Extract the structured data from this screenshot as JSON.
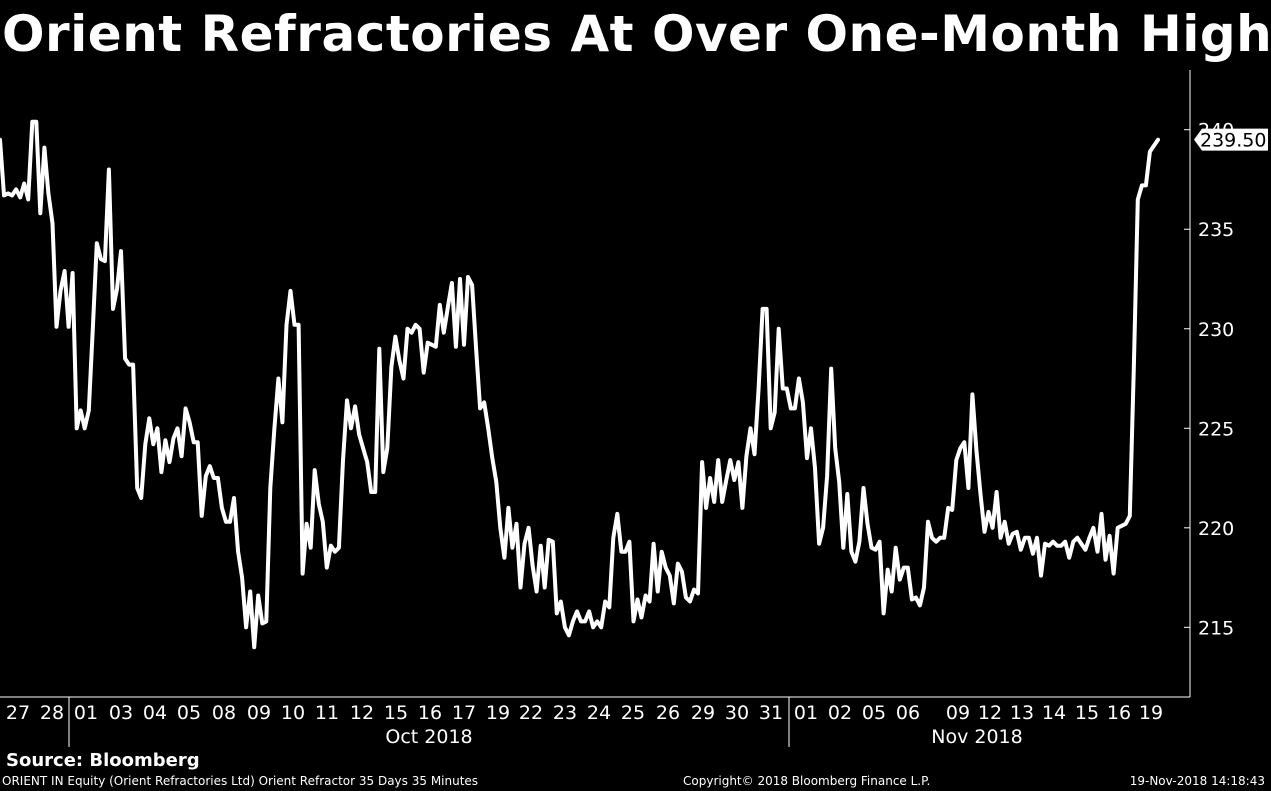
{
  "title": "Orient Refractories At Over One-Month High",
  "source": "Source: Bloomberg",
  "footer": {
    "left": "ORIENT IN Equity (Orient Refractories Ltd) Orient Refractor 35 Days 35 Minutes",
    "middle": "Copyright© 2018 Bloomberg Finance L.P.",
    "right": "19-Nov-2018 14:18:43"
  },
  "chart_data": {
    "type": "line",
    "series": [
      {
        "last_value_label": "239.50",
        "values": [
          239.5,
          236.7,
          236.8,
          236.7,
          237.0,
          236.6,
          237.3,
          236.5,
          240.4,
          240.4,
          235.8,
          239.1,
          236.8,
          235.3,
          230.1,
          231.9,
          232.9,
          230.1,
          232.8,
          225.0,
          225.9,
          225.0,
          225.9,
          230.0,
          234.3,
          233.5,
          233.4,
          238.0,
          231.0,
          232.0,
          233.9,
          228.5,
          228.2,
          228.2,
          222.0,
          221.5,
          224.2,
          225.5,
          224.2,
          225.0,
          222.8,
          224.4,
          223.3,
          224.5,
          225.0,
          223.6,
          226.0,
          225.3,
          224.3,
          224.3,
          220.6,
          222.6,
          223.1,
          222.5,
          222.5,
          221.0,
          220.3,
          220.3,
          221.5,
          218.8,
          217.5,
          215.0,
          216.8,
          214.0,
          216.6,
          215.2,
          215.3,
          222.0,
          225.0,
          227.5,
          225.3,
          230.2,
          231.9,
          230.2,
          230.2,
          217.7,
          220.2,
          219.0,
          222.9,
          221.2,
          220.3,
          218.0,
          219.1,
          218.8,
          219.0,
          223.4,
          226.4,
          225.0,
          226.1,
          224.7,
          224.0,
          223.3,
          221.8,
          221.8,
          229.0,
          222.8,
          224.0,
          228.1,
          229.6,
          228.4,
          227.5,
          230.0,
          229.8,
          230.2,
          230.0,
          227.8,
          229.3,
          229.2,
          229.1,
          231.2,
          229.8,
          231.1,
          232.3,
          229.1,
          232.5,
          229.2,
          232.6,
          232.2,
          229.0,
          226.0,
          226.3,
          225.0,
          223.5,
          222.3,
          220.0,
          218.5,
          221.0,
          219.0,
          220.2,
          217.0,
          219.2,
          220.0,
          218.1,
          216.8,
          219.1,
          217.0,
          219.4,
          219.3,
          215.7,
          216.3,
          215.0,
          214.6,
          215.3,
          215.8,
          215.3,
          215.3,
          215.8,
          215.0,
          215.3,
          215.0,
          216.3,
          216.0,
          219.5,
          220.7,
          218.8,
          218.8,
          219.3,
          215.3,
          216.4,
          215.5,
          216.6,
          216.3,
          219.2,
          216.8,
          218.8,
          218.0,
          217.6,
          216.2,
          218.2,
          217.8,
          216.5,
          216.3,
          216.9,
          216.7,
          223.3,
          221.0,
          222.5,
          221.3,
          223.4,
          221.3,
          222.4,
          223.4,
          222.4,
          223.3,
          221.0,
          223.6,
          225.0,
          223.7,
          227.0,
          231.0,
          231.0,
          225.0,
          225.8,
          230.0,
          227.0,
          227.0,
          226.0,
          226.0,
          227.5,
          226.3,
          223.5,
          225.0,
          223.0,
          219.2,
          220.0,
          222.6,
          228.0,
          224.0,
          222.3,
          219.0,
          221.7,
          218.8,
          218.3,
          219.3,
          222.0,
          220.2,
          219.0,
          218.9,
          219.3,
          215.7,
          217.9,
          216.8,
          219.0,
          217.4,
          218.0,
          218.0,
          216.4,
          216.5,
          216.1,
          217.0,
          220.3,
          219.5,
          219.3,
          219.5,
          219.5,
          221.0,
          220.9,
          223.4,
          224.0,
          224.3,
          222.0,
          226.7,
          223.9,
          221.7,
          219.8,
          220.8,
          220.0,
          221.8,
          219.5,
          220.3,
          219.2,
          219.7,
          219.8,
          218.9,
          219.5,
          219.5,
          218.7,
          219.5,
          217.6,
          219.2,
          219.1,
          219.3,
          219.1,
          219.1,
          219.3,
          218.5,
          219.3,
          219.5,
          219.2,
          218.9,
          219.5,
          220.0,
          218.8,
          220.7,
          218.4,
          219.6,
          217.7,
          220.0,
          220.1,
          220.2,
          220.6,
          228.0,
          236.5,
          237.2,
          237.2,
          238.9,
          239.2,
          239.5
        ]
      }
    ],
    "ylim": [
      211.5,
      243.0
    ],
    "yticks": [
      "215",
      "220",
      "225",
      "230",
      "235",
      "240"
    ],
    "x_tick_labels": [
      "27",
      "28",
      "01",
      "03",
      "04",
      "05",
      "08",
      "09",
      "10",
      "11",
      "12",
      "15",
      "16",
      "17",
      "19",
      "22",
      "23",
      "24",
      "25",
      "26",
      "29",
      "30",
      "31",
      "01",
      "02",
      "05",
      "06",
      "09",
      "12",
      "13",
      "14",
      "15",
      "16",
      "19"
    ],
    "x_month_labels": [
      "Oct 2018",
      "Nov 2018"
    ],
    "grid": false
  }
}
